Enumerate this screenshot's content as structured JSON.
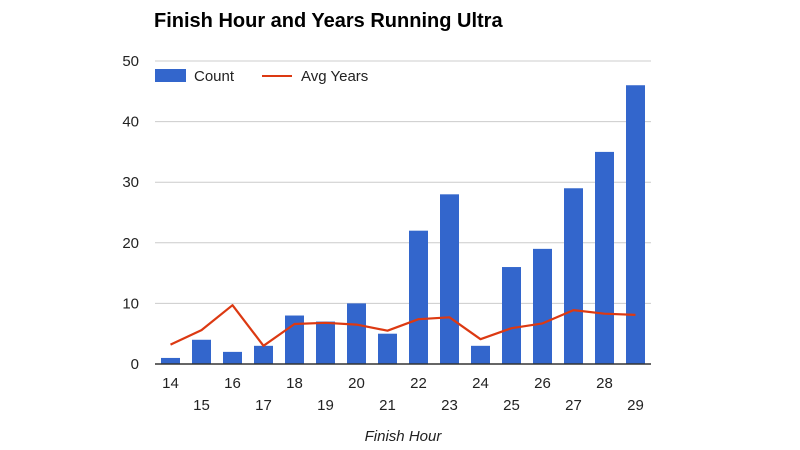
{
  "chart_data": {
    "type": "bar",
    "title": "Finish Hour and Years Running Ultra",
    "xlabel": "Finish Hour",
    "ylabel": "",
    "ylim": [
      0,
      50
    ],
    "yticks": [
      "0",
      "10",
      "20",
      "30",
      "40",
      "50"
    ],
    "grid": true,
    "legend_position": "top-left",
    "categories": [
      "14",
      "15",
      "16",
      "17",
      "18",
      "19",
      "20",
      "21",
      "22",
      "23",
      "24",
      "25",
      "26",
      "27",
      "28",
      "29"
    ],
    "series": [
      {
        "name": "Count",
        "type": "bar",
        "color": "#3366cc",
        "values": [
          1,
          4,
          2,
          3,
          8,
          7,
          10,
          5,
          22,
          28,
          3,
          16,
          19,
          29,
          35,
          46
        ]
      },
      {
        "name": "Avg Years",
        "type": "line",
        "color": "#dc3912",
        "values": [
          3.2,
          5.6,
          9.7,
          3.0,
          6.6,
          6.8,
          6.5,
          5.5,
          7.4,
          7.7,
          4.1,
          5.9,
          6.7,
          8.9,
          8.3,
          8.1
        ]
      }
    ]
  }
}
